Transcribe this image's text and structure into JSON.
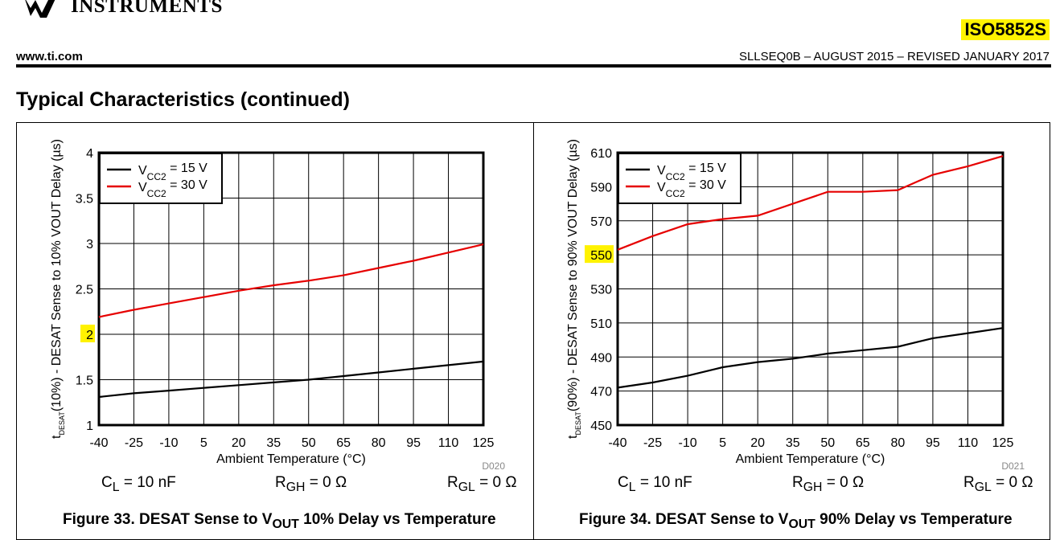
{
  "header": {
    "company": "INSTRUMENTS",
    "part_number": "ISO5852S",
    "website": "www.ti.com",
    "doc_ref": "SLLSEQ0B – AUGUST 2015 – REVISED JANUARY 2017",
    "section_title": "Typical Characteristics (continued)"
  },
  "colors": {
    "series_15v": "#000000",
    "series_30v": "#e60000",
    "highlight": "#fff200"
  },
  "chart_data": [
    {
      "type": "line",
      "figure_label": "Figure 33. DESAT Sense to V",
      "figure_sub": "OUT",
      "figure_rest": " 10% Delay vs Temperature",
      "id_code": "D020",
      "xlabel": "Ambient Temperature (°C)",
      "ylabel_prefix": "t",
      "ylabel_sub": "DESAT",
      "ylabel_paren": "(10%)",
      "ylabel_rest": " - DESAT Sense to 10% VOUT Delay (µs)",
      "x_ticks": [
        -40,
        -25,
        -10,
        5,
        20,
        35,
        50,
        65,
        80,
        95,
        110,
        125
      ],
      "y_ticks": [
        "1",
        "1.5",
        "2",
        "2.5",
        "3",
        "3.5",
        "4"
      ],
      "xlim": [
        -40,
        125
      ],
      "ylim": [
        1,
        4
      ],
      "grid": true,
      "legend_position": "top-left",
      "series": [
        {
          "name_prefix": "V",
          "name_sub": "CC2",
          "name_rest": " = 15 V",
          "color": "#000000",
          "x": [
            -40,
            -25,
            -10,
            5,
            20,
            35,
            50,
            65,
            80,
            95,
            110,
            125
          ],
          "y": [
            1.31,
            1.35,
            1.38,
            1.41,
            1.44,
            1.47,
            1.5,
            1.54,
            1.58,
            1.62,
            1.66,
            1.7
          ]
        },
        {
          "name_prefix": "V",
          "name_sub": "CC2",
          "name_rest": " = 30 V",
          "color": "#e60000",
          "x": [
            -40,
            -25,
            -10,
            5,
            20,
            35,
            50,
            65,
            80,
            95,
            110,
            125
          ],
          "y": [
            2.19,
            2.27,
            2.34,
            2.41,
            2.48,
            2.54,
            2.59,
            2.65,
            2.73,
            2.81,
            2.9,
            2.99
          ]
        }
      ],
      "conditions": [
        {
          "prefix": "C",
          "sub": "L",
          "rest": " = 10 nF"
        },
        {
          "prefix": "R",
          "sub": "GH",
          "rest": " = 0 Ω"
        },
        {
          "prefix": "R",
          "sub": "GL",
          "rest": " = 0 Ω"
        }
      ]
    },
    {
      "type": "line",
      "figure_label": "Figure 34. DESAT Sense to V",
      "figure_sub": "OUT",
      "figure_rest": " 90% Delay vs Temperature",
      "id_code": "D021",
      "xlabel": "Ambient Temperature (°C)",
      "ylabel_prefix": "t",
      "ylabel_sub": "DESAT",
      "ylabel_paren": "(90%)",
      "ylabel_rest": " - DESAT Sense to 90% VOUT Delay ",
      "ylabel_unit": "(µs)",
      "x_ticks": [
        -40,
        -25,
        -10,
        5,
        20,
        35,
        50,
        65,
        80,
        95,
        110,
        125
      ],
      "y_ticks": [
        "450",
        "470",
        "490",
        "510",
        "530",
        "550",
        "570",
        "590",
        "610"
      ],
      "xlim": [
        -40,
        125
      ],
      "ylim": [
        450,
        610
      ],
      "grid": true,
      "legend_position": "top-left",
      "series": [
        {
          "name_prefix": "V",
          "name_sub": "CC2",
          "name_rest": " = 15 V",
          "color": "#000000",
          "x": [
            -40,
            -25,
            -10,
            5,
            20,
            35,
            50,
            65,
            80,
            95,
            110,
            125
          ],
          "y": [
            472,
            475,
            479,
            484,
            487,
            489,
            492,
            494,
            496,
            501,
            504,
            507
          ]
        },
        {
          "name_prefix": "V",
          "name_sub": "CC2",
          "name_rest": " = 30 V",
          "color": "#e60000",
          "x": [
            -40,
            -25,
            -10,
            5,
            20,
            35,
            50,
            65,
            80,
            95,
            110,
            125
          ],
          "y": [
            553,
            561,
            568,
            571,
            573,
            580,
            587,
            587,
            588,
            597,
            602,
            608
          ]
        }
      ],
      "conditions": [
        {
          "prefix": "C",
          "sub": "L",
          "rest": " = 10 nF"
        },
        {
          "prefix": "R",
          "sub": "GH",
          "rest": " = 0 Ω"
        },
        {
          "prefix": "R",
          "sub": "GL",
          "rest": " = 0 Ω"
        }
      ]
    }
  ]
}
